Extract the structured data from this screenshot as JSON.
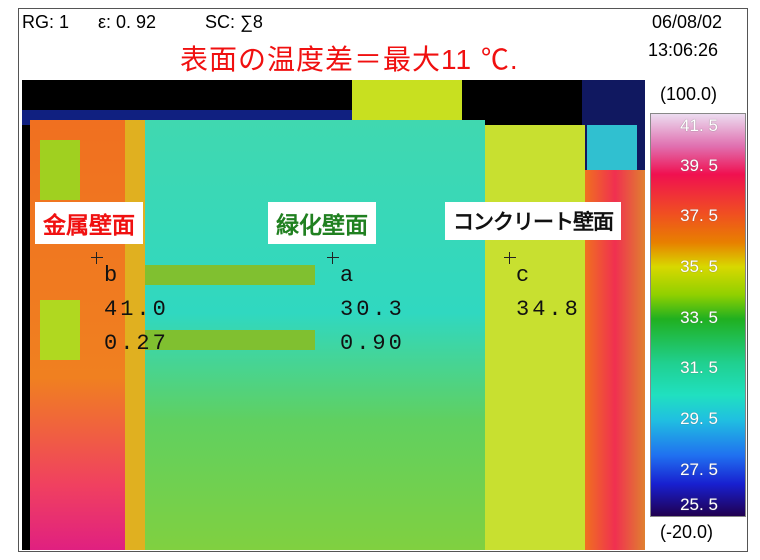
{
  "header": {
    "range": "RG: 1",
    "emissivity": "ε: 0. 92",
    "scan": "SC: ∑8",
    "date": "06/08/02",
    "time": "13:06:26"
  },
  "title": "表面の温度差＝最大11 ℃.",
  "labels": {
    "metal": "金属壁面",
    "green": "緑化壁面",
    "concrete": "コンクリート壁面"
  },
  "label_colors": {
    "metal": "#f01010",
    "green": "#208020",
    "concrete": "#111111"
  },
  "points": [
    {
      "id": "b",
      "temp": "41.0",
      "emissivity": "0.27"
    },
    {
      "id": "a",
      "temp": "30.3",
      "emissivity": "0.90"
    },
    {
      "id": "c",
      "temp": "34.8",
      "emissivity": ""
    }
  ],
  "scale": {
    "max_range": "(100.0)",
    "min_range": "(-20.0)",
    "ticks": [
      "41. 5",
      "39. 5",
      "37. 5",
      "35. 5",
      "33. 5",
      "31. 5",
      "29. 5",
      "27. 5",
      "25. 5"
    ]
  }
}
